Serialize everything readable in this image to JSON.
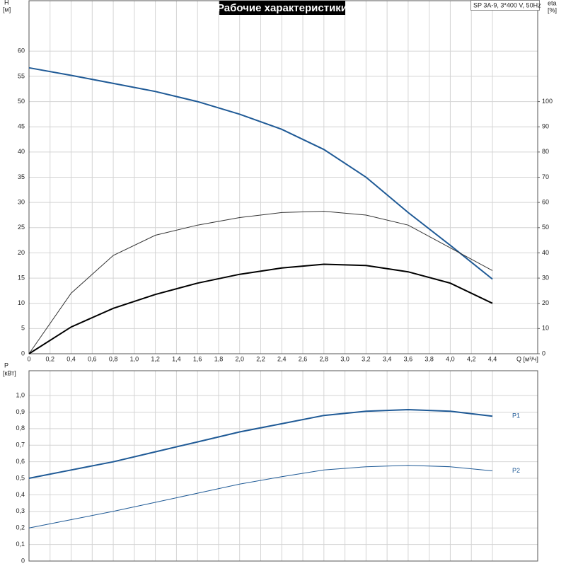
{
  "chart_data": [
    {
      "type": "line",
      "title": "Рабочие характеристики",
      "model": "SP 3A-9, 3*400 V, 50Hz",
      "xlabel": "Q [м³/ч]",
      "ylabel": "H",
      "yunit": "[м]",
      "y2label": "eta",
      "y2unit": "[%]",
      "x": [
        0,
        0.4,
        0.8,
        1.2,
        1.6,
        2.0,
        2.4,
        2.8,
        3.2,
        3.6,
        4.0,
        4.4
      ],
      "xlim": [
        0,
        4.83
      ],
      "xticks": [
        0,
        {
          "value": 0.2,
          "label": "0,2"
        },
        {
          "value": 0.4,
          "label": "0,4"
        },
        {
          "value": 0.6,
          "label": "0,6"
        },
        {
          "value": 0.8,
          "label": "0,8"
        },
        {
          "value": 1.0,
          "label": "1,0"
        },
        {
          "value": 1.2,
          "label": "1,2"
        },
        {
          "value": 1.4,
          "label": "1,4"
        },
        {
          "value": 1.6,
          "label": "1,6"
        },
        {
          "value": 1.8,
          "label": "1,8"
        },
        {
          "value": 2.0,
          "label": "2,0"
        },
        {
          "value": 2.2,
          "label": "2,2"
        },
        {
          "value": 2.4,
          "label": "2,4"
        },
        {
          "value": 2.6,
          "label": "2,6"
        },
        {
          "value": 2.8,
          "label": "2,8"
        },
        {
          "value": 3.0,
          "label": "3,0"
        },
        {
          "value": 3.2,
          "label": "3,2"
        },
        {
          "value": 3.4,
          "label": "3,4"
        },
        {
          "value": 3.6,
          "label": "3,6"
        },
        {
          "value": 3.8,
          "label": "3,8"
        },
        {
          "value": 4.0,
          "label": "4,0"
        },
        {
          "value": 4.2,
          "label": "4,2"
        },
        {
          "value": 4.4,
          "label": "4,4"
        }
      ],
      "ylim": [
        0,
        70
      ],
      "yticks": [
        0,
        5,
        10,
        15,
        20,
        25,
        30,
        35,
        40,
        45,
        50,
        55,
        60
      ],
      "y2lim": [
        0,
        140
      ],
      "y2ticks": [
        0,
        10,
        20,
        30,
        40,
        50,
        60,
        70,
        80,
        90,
        100
      ],
      "grid": true,
      "show_xtick_labels": true,
      "series": [
        {
          "color": "#1f5a96",
          "width": 2,
          "values": [
            56.7,
            55.2,
            53.6,
            52.0,
            50.0,
            47.5,
            44.5,
            40.5,
            35.0,
            28.0,
            21.5,
            14.8
          ]
        },
        {
          "color": "#333333",
          "width": 1,
          "axis": "y2",
          "values": [
            0,
            24,
            39,
            47,
            51,
            54,
            56,
            56.5,
            55,
            51,
            42,
            33
          ]
        },
        {
          "color": "#000000",
          "width": 2,
          "axis": "y2",
          "values": [
            0,
            10.6,
            18,
            23.5,
            28,
            31.5,
            34,
            35.5,
            35,
            32.5,
            28,
            20
          ]
        }
      ]
    },
    {
      "type": "line",
      "ylabel": "P",
      "yunit": "[кВт]",
      "x": [
        0,
        0.4,
        0.8,
        1.2,
        1.6,
        2.0,
        2.4,
        2.8,
        3.2,
        3.6,
        4.0,
        4.4
      ],
      "xlim": [
        0,
        4.83
      ],
      "xticks": [
        0,
        0.2,
        0.4,
        0.6,
        0.8,
        1.0,
        1.2,
        1.4,
        1.6,
        1.8,
        2.0,
        2.2,
        2.4,
        2.6,
        2.8,
        3.0,
        3.2,
        3.4,
        3.6,
        3.8,
        4.0,
        4.2,
        4.4
      ],
      "ylim": [
        0,
        1.15
      ],
      "yticks": [
        0,
        {
          "value": 0.1,
          "label": "0,1"
        },
        {
          "value": 0.2,
          "label": "0,2"
        },
        {
          "value": 0.3,
          "label": "0,3"
        },
        {
          "value": 0.4,
          "label": "0,4"
        },
        {
          "value": 0.5,
          "label": "0,5"
        },
        {
          "value": 0.6,
          "label": "0,6"
        },
        {
          "value": 0.7,
          "label": "0,7"
        },
        {
          "value": 0.8,
          "label": "0,8"
        },
        {
          "value": 0.9,
          "label": "0,9"
        },
        {
          "value": 1.0,
          "label": "1,0"
        }
      ],
      "grid": true,
      "show_xtick_labels": false,
      "series": [
        {
          "name": "P1",
          "color": "#1f5a96",
          "width": 2,
          "values": [
            0.5,
            0.55,
            0.6,
            0.66,
            0.72,
            0.78,
            0.83,
            0.88,
            0.905,
            0.915,
            0.905,
            0.875
          ]
        },
        {
          "name": "P2",
          "color": "#1f5a96",
          "width": 1,
          "values": [
            0.2,
            0.25,
            0.3,
            0.355,
            0.41,
            0.465,
            0.51,
            0.55,
            0.57,
            0.578,
            0.57,
            0.545
          ]
        }
      ]
    }
  ]
}
